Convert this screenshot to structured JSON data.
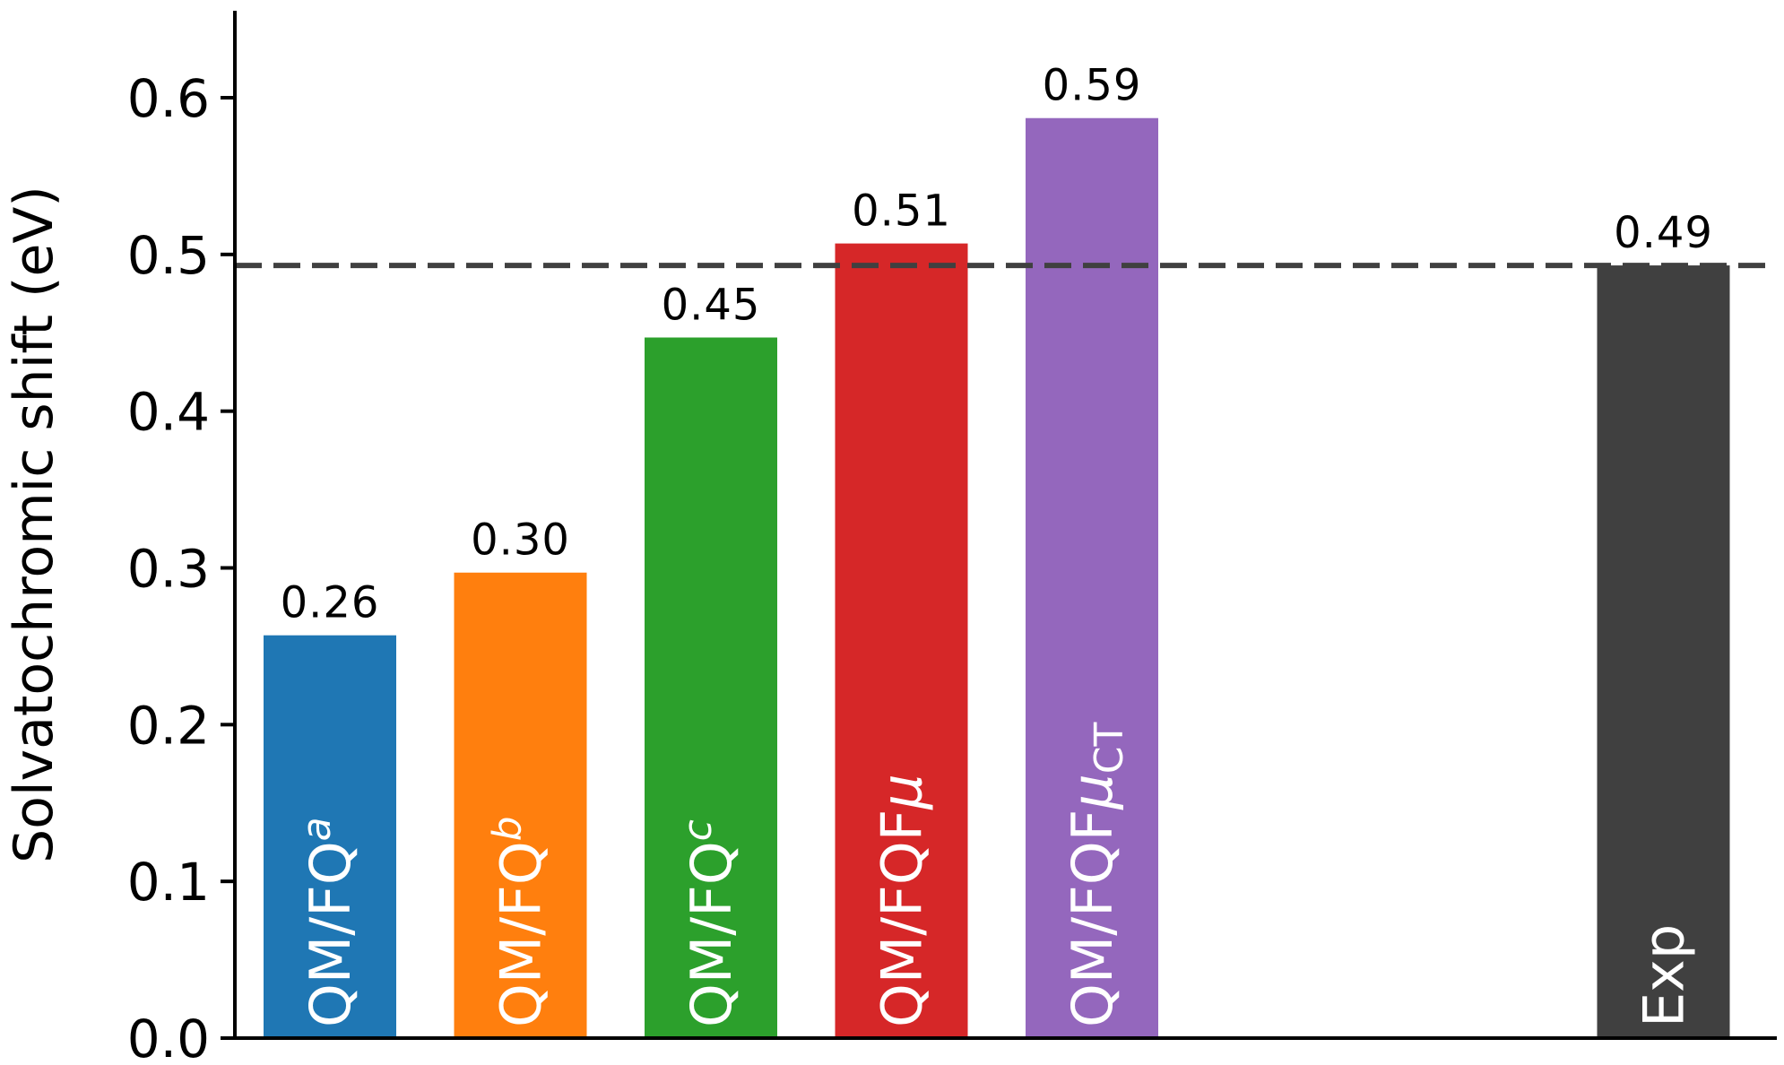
{
  "chart_data": {
    "type": "bar",
    "ylabel": "Solvatochromic shift (eV)",
    "xlabel": "",
    "ylim": [
      0.0,
      0.66
    ],
    "yticks": [
      "0.0",
      "0.1",
      "0.2",
      "0.3",
      "0.4",
      "0.5",
      "0.6"
    ],
    "bars": [
      {
        "label_main": "QM/FQ",
        "label_sup": "a",
        "label_sub": "",
        "value": 0.257,
        "value_label": "0.26",
        "color": "#1f77b4",
        "slot": 0
      },
      {
        "label_main": "QM/FQ",
        "label_sup": "b",
        "label_sub": "",
        "value": 0.297,
        "value_label": "0.30",
        "color": "#ff7f0e",
        "slot": 1
      },
      {
        "label_main": "QM/FQ",
        "label_sup": "c",
        "label_sub": "",
        "value": 0.447,
        "value_label": "0.45",
        "color": "#2ca02c",
        "slot": 2
      },
      {
        "label_main": "QM/FQF",
        "label_sup": "",
        "label_mu": "μ",
        "label_sub": "",
        "value": 0.507,
        "value_label": "0.51",
        "color": "#d62728",
        "slot": 3
      },
      {
        "label_main": "QM/FQF",
        "label_sup": "",
        "label_mu": "μ",
        "label_sub": "CT",
        "value": 0.587,
        "value_label": "0.59",
        "color": "#9467bd",
        "slot": 4
      },
      {
        "label_main": "Exp",
        "label_sup": "",
        "label_sub": "",
        "value": 0.493,
        "value_label": "0.49",
        "color": "#404040",
        "slot": 7
      }
    ],
    "reference_line": {
      "value": 0.493,
      "style": "dashed",
      "color": "#404040"
    },
    "grid": false,
    "legend": "none"
  }
}
